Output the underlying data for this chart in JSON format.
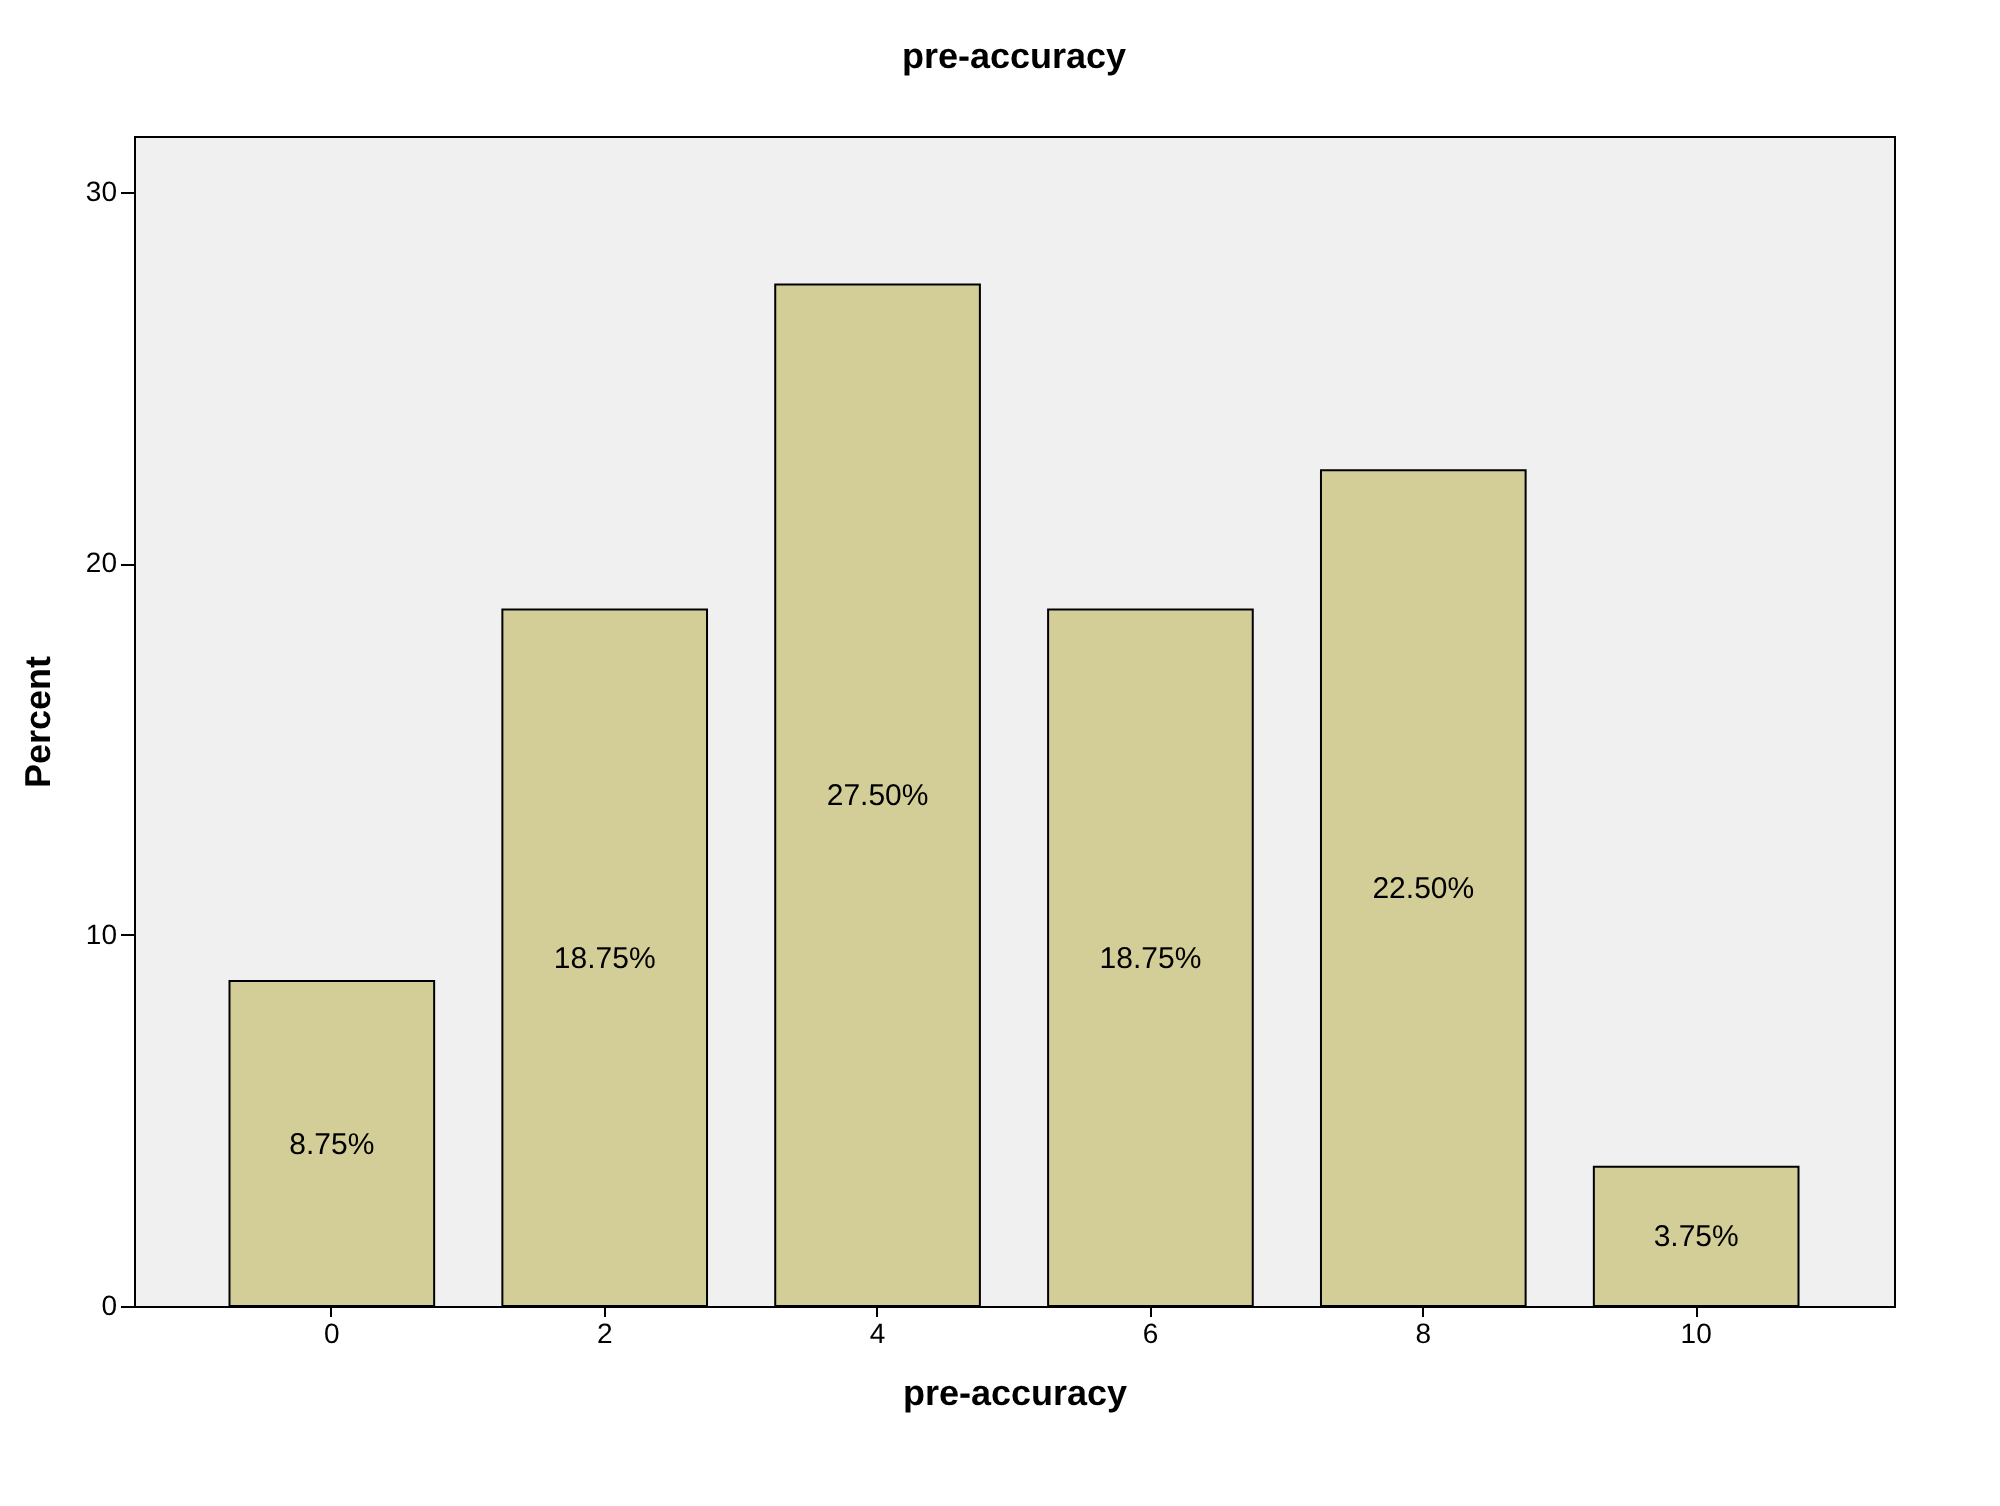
{
  "chart_data": {
    "type": "bar",
    "title": "pre-accuracy",
    "xlabel": "pre-accuracy",
    "ylabel": "Percent",
    "categories": [
      "0",
      "2",
      "4",
      "6",
      "8",
      "10"
    ],
    "values": [
      8.75,
      18.75,
      27.5,
      18.75,
      22.5,
      3.75
    ],
    "value_labels": [
      "8.75%",
      "18.75%",
      "27.50%",
      "18.75%",
      "22.50%",
      "3.75%"
    ],
    "color": "#d3ce98",
    "ylim": [
      0,
      31.5
    ],
    "yticks": [
      0,
      10,
      20,
      30
    ],
    "grid": false
  }
}
